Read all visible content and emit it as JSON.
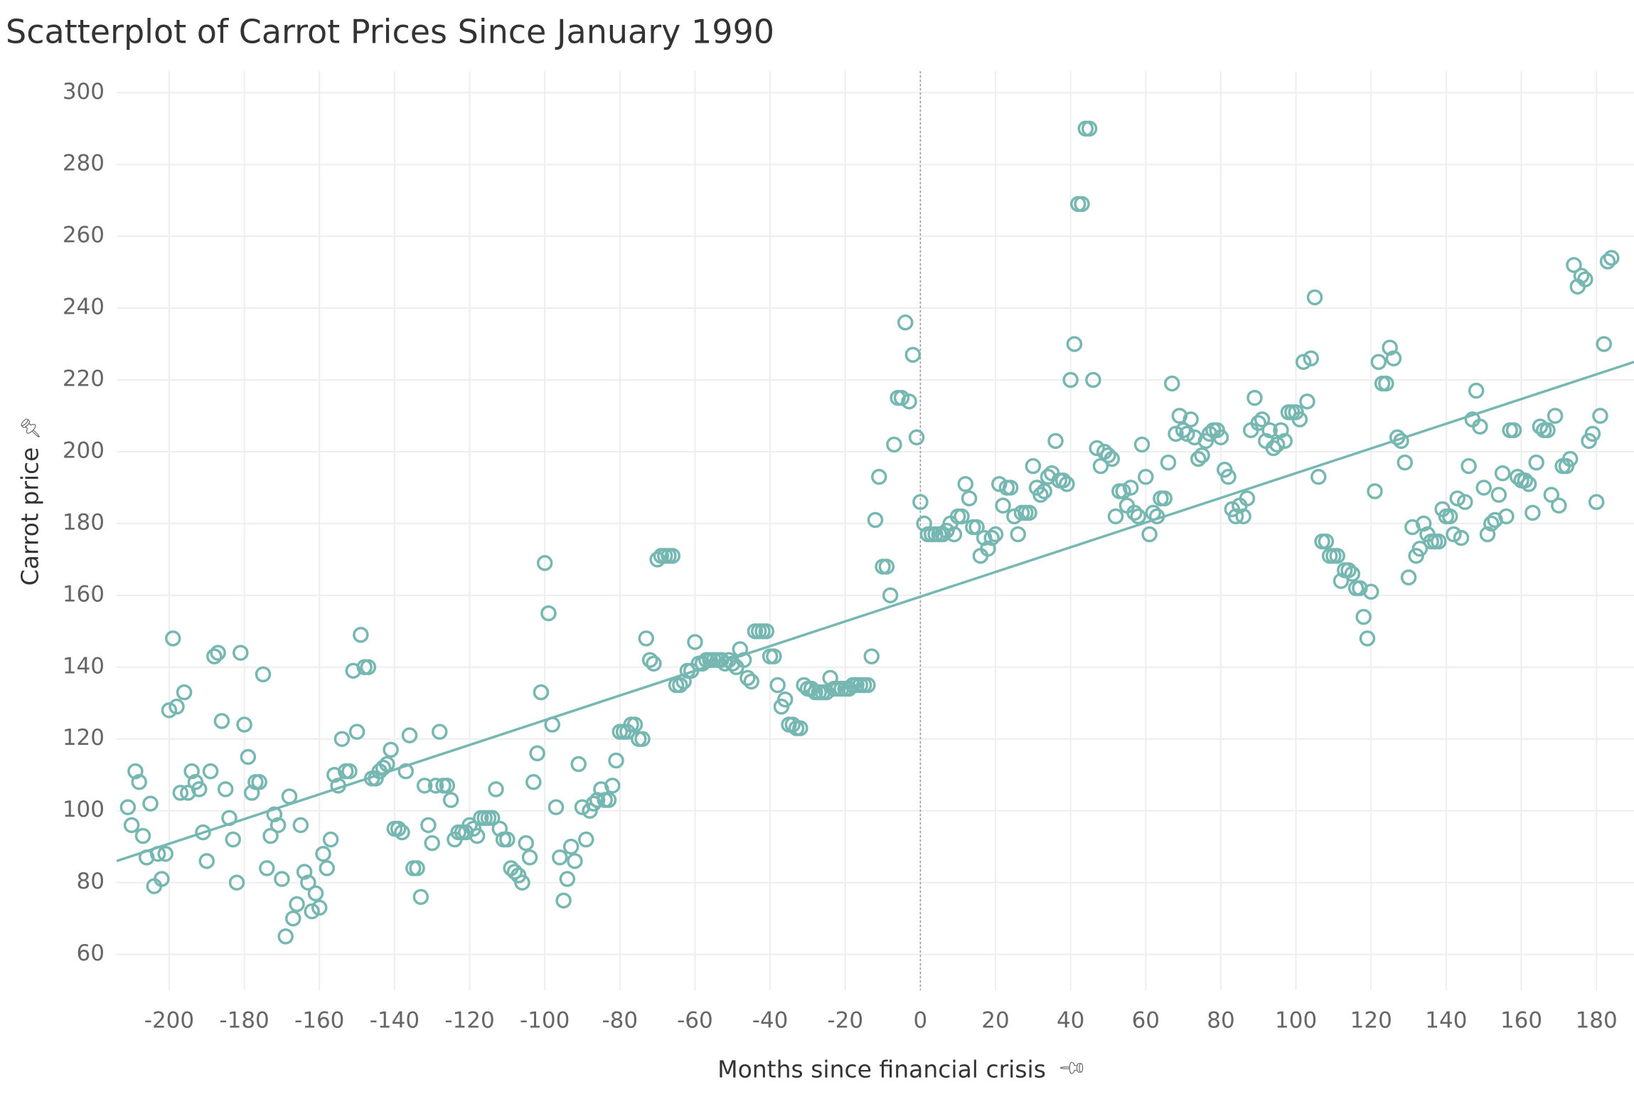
{
  "chart_data": {
    "type": "scatter",
    "title": "Scatterplot of Carrot Prices Since January 1990",
    "x_label": "Months since financial crisis",
    "y_label": "Carrot price",
    "color": "#76b7b2",
    "grid": true,
    "xlim": [
      -214,
      190
    ],
    "ylim": [
      50,
      306
    ],
    "xticks": [
      -200,
      -180,
      -160,
      -140,
      -120,
      -100,
      -80,
      -60,
      -40,
      -20,
      0,
      20,
      40,
      60,
      80,
      100,
      120,
      140,
      160,
      180
    ],
    "yticks": [
      60,
      80,
      100,
      120,
      140,
      160,
      180,
      200,
      220,
      240,
      260,
      280,
      300
    ],
    "reference_line": {
      "x": 0
    },
    "trend_line": {
      "x": [
        -214,
        190
      ],
      "values": [
        86,
        225
      ]
    },
    "x": [
      -211,
      -210,
      -209,
      -208,
      -207,
      -206,
      -205,
      -204,
      -203,
      -202,
      -201,
      -200,
      -199,
      -198,
      -197,
      -196,
      -195,
      -194,
      -193,
      -192,
      -191,
      -190,
      -189,
      -188,
      -187,
      -186,
      -185,
      -184,
      -183,
      -182,
      -181,
      -180,
      -179,
      -178,
      -177,
      -176,
      -175,
      -174,
      -173,
      -172,
      -171,
      -170,
      -169,
      -168,
      -167,
      -166,
      -165,
      -164,
      -163,
      -162,
      -161,
      -160,
      -159,
      -158,
      -157,
      -156,
      -155,
      -154,
      -153,
      -152,
      -151,
      -150,
      -149,
      -148,
      -147,
      -146,
      -145,
      -144,
      -143,
      -142,
      -141,
      -140,
      -139,
      -138,
      -137,
      -136,
      -135,
      -134,
      -133,
      -132,
      -131,
      -130,
      -129,
      -128,
      -127,
      -126,
      -125,
      -124,
      -123,
      -122,
      -121,
      -120,
      -119,
      -118,
      -117,
      -116,
      -115,
      -114,
      -113,
      -112,
      -111,
      -110,
      -109,
      -108,
      -107,
      -106,
      -105,
      -104,
      -103,
      -102,
      -101,
      -100,
      -99,
      -98,
      -97,
      -96,
      -95,
      -94,
      -93,
      -92,
      -91,
      -90,
      -89,
      -88,
      -87,
      -86,
      -85,
      -84,
      -83,
      -82,
      -81,
      -80,
      -79,
      -78,
      -77,
      -76,
      -75,
      -74,
      -73,
      -72,
      -71,
      -70,
      -69,
      -68,
      -67,
      -66,
      -65,
      -64,
      -63,
      -62,
      -61,
      -60,
      -59,
      -58,
      -57,
      -56,
      -55,
      -54,
      -53,
      -52,
      -51,
      -50,
      -49,
      -48,
      -47,
      -46,
      -45,
      -44,
      -43,
      -42,
      -41,
      -40,
      -39,
      -38,
      -37,
      -36,
      -35,
      -34,
      -33,
      -32,
      -31,
      -30,
      -29,
      -28,
      -27,
      -26,
      -25,
      -24,
      -23,
      -22,
      -21,
      -20,
      -19,
      -18,
      -17,
      -16,
      -15,
      -14,
      -13,
      -12,
      -11,
      -10,
      -9,
      -8,
      -7,
      -6,
      -5,
      -4,
      -3,
      -2,
      -1,
      0,
      1,
      2,
      3,
      4,
      5,
      6,
      7,
      8,
      9,
      10,
      11,
      12,
      13,
      14,
      15,
      16,
      17,
      18,
      19,
      20,
      21,
      22,
      23,
      24,
      25,
      26,
      27,
      28,
      29,
      30,
      31,
      32,
      33,
      34,
      35,
      36,
      37,
      38,
      39,
      40,
      41,
      42,
      43,
      44,
      45,
      46,
      47,
      48,
      49,
      50,
      51,
      52,
      53,
      54,
      55,
      56,
      57,
      58,
      59,
      60,
      61,
      62,
      63,
      64,
      65,
      66,
      67,
      68,
      69,
      70,
      71,
      72,
      73,
      74,
      75,
      76,
      77,
      78,
      79,
      80,
      81,
      82,
      83,
      84,
      85,
      86,
      87,
      88,
      89,
      90,
      91,
      92,
      93,
      94,
      95,
      96,
      97,
      98,
      99,
      100,
      101,
      102,
      103,
      104,
      105,
      106,
      107,
      108,
      109,
      110,
      111,
      112,
      113,
      114,
      115,
      116,
      117,
      118,
      119,
      120,
      121,
      122,
      123,
      124,
      125,
      126,
      127,
      128,
      129,
      130,
      131,
      132,
      133,
      134,
      135,
      136,
      137,
      138,
      139,
      140,
      141,
      142,
      143,
      144,
      145,
      146,
      147,
      148,
      149,
      150,
      151,
      152,
      153,
      154,
      155,
      156,
      157,
      158,
      159,
      160,
      161,
      162,
      163,
      164,
      165,
      166,
      167,
      168,
      169,
      170,
      171,
      172,
      173,
      174,
      175,
      176,
      177,
      178,
      179,
      180,
      181,
      182,
      183,
      184
    ],
    "values": [
      101,
      96,
      111,
      108,
      93,
      87,
      102,
      79,
      88,
      81,
      88,
      128,
      148,
      129,
      105,
      133,
      105,
      111,
      108,
      106,
      94,
      86,
      111,
      143,
      144,
      125,
      106,
      98,
      92,
      80,
      144,
      124,
      115,
      105,
      108,
      108,
      138,
      84,
      93,
      99,
      96,
      81,
      65,
      104,
      70,
      74,
      96,
      83,
      80,
      72,
      77,
      73,
      88,
      84,
      92,
      110,
      107,
      120,
      111,
      111,
      139,
      122,
      149,
      140,
      140,
      109,
      109,
      111,
      112,
      113,
      117,
      95,
      95,
      94,
      111,
      121,
      84,
      84,
      76,
      107,
      96,
      91,
      107,
      122,
      107,
      107,
      103,
      92,
      94,
      94,
      94,
      96,
      95,
      93,
      98,
      98,
      98,
      98,
      106,
      95,
      92,
      92,
      84,
      83,
      82,
      80,
      91,
      87,
      108,
      116,
      133,
      169,
      155,
      124,
      101,
      87,
      75,
      81,
      90,
      86,
      113,
      101,
      92,
      100,
      102,
      103,
      106,
      103,
      103,
      107,
      114,
      122,
      122,
      122,
      124,
      124,
      120,
      120,
      148,
      142,
      141,
      170,
      171,
      171,
      171,
      171,
      135,
      135,
      136,
      139,
      139,
      147,
      141,
      141,
      142,
      142,
      142,
      142,
      142,
      141,
      142,
      141,
      140,
      145,
      142,
      137,
      136,
      150,
      150,
      150,
      150,
      143,
      143,
      135,
      129,
      131,
      124,
      124,
      123,
      123,
      135,
      134,
      134,
      133,
      133,
      133,
      133,
      137,
      134,
      134,
      134,
      134,
      134,
      135,
      135,
      135,
      135,
      135,
      143,
      181,
      193,
      168,
      168,
      160,
      202,
      215,
      215,
      236,
      214,
      227,
      204,
      186,
      180,
      177,
      177,
      177,
      177,
      177,
      178,
      180,
      177,
      182,
      182,
      191,
      187,
      179,
      179,
      171,
      176,
      173,
      176,
      177,
      191,
      185,
      190,
      190,
      182,
      177,
      183,
      183,
      183,
      196,
      190,
      188,
      189,
      193,
      194,
      203,
      192,
      192,
      191,
      220,
      230,
      269,
      269,
      290,
      290,
      220,
      201,
      196,
      200,
      199,
      198,
      182,
      189,
      189,
      185,
      190,
      183,
      182,
      202,
      193,
      177,
      183,
      182,
      187,
      187,
      197,
      219,
      205,
      210,
      206,
      205,
      209,
      204,
      198,
      199,
      203,
      205,
      206,
      206,
      204,
      195,
      193,
      184,
      182,
      185,
      182,
      187,
      206,
      215,
      208,
      209,
      203,
      206,
      201,
      202,
      206,
      203,
      211,
      211,
      211,
      209,
      225,
      214,
      226,
      243,
      193,
      175,
      175,
      171,
      171,
      171,
      164,
      167,
      167,
      166,
      162,
      162,
      154,
      148,
      161,
      189,
      225,
      219,
      219,
      229,
      226,
      204,
      203,
      197,
      165,
      179,
      171,
      173,
      180,
      177,
      175,
      175,
      175,
      184,
      182,
      182,
      177,
      187,
      176,
      186,
      196,
      209,
      217,
      207,
      190,
      177,
      180,
      181,
      188,
      194,
      182,
      206,
      206,
      193,
      192,
      192,
      191,
      183,
      197,
      207,
      206,
      206,
      188,
      210,
      185,
      196,
      196,
      198,
      252,
      246,
      249,
      248,
      203,
      205,
      186,
      210,
      230,
      253,
      254
    ]
  }
}
